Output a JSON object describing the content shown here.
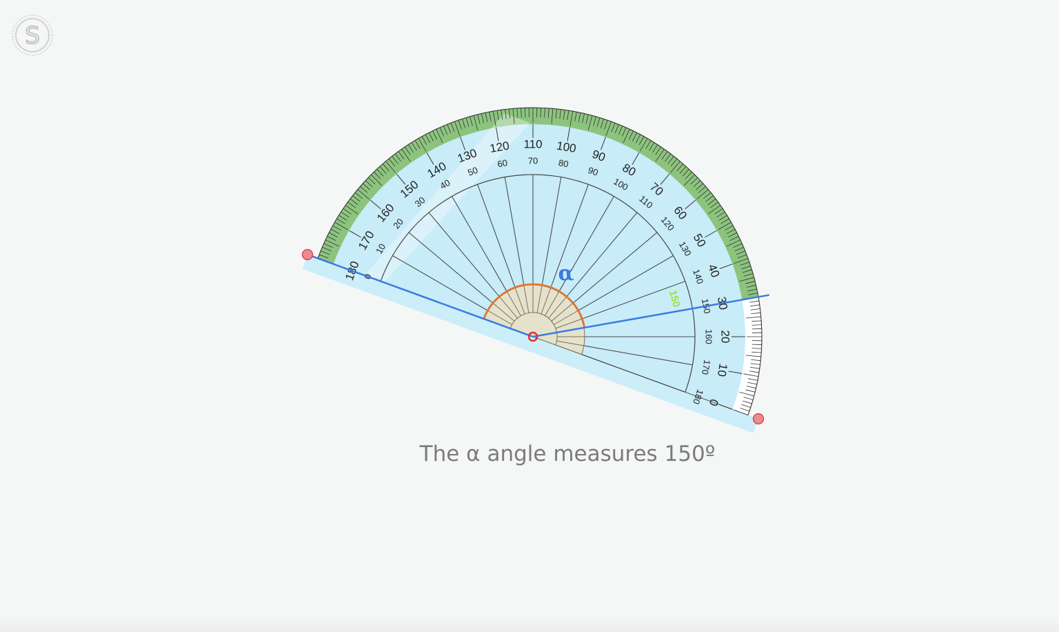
{
  "logo": {
    "letter": "S"
  },
  "protractor": {
    "measured_angle": 150,
    "max_angle": 180,
    "label_step": 10,
    "outer_labels": [
      "0",
      "10",
      "20",
      "30",
      "40",
      "50",
      "60",
      "70",
      "80",
      "90",
      "100",
      "110",
      "120",
      "130",
      "140",
      "150",
      "160",
      "170",
      "180"
    ],
    "inner_labels": [
      "180",
      "170",
      "160",
      "150",
      "140",
      "130",
      "120",
      "110",
      "100",
      "90",
      "80",
      "70",
      "60",
      "50",
      "40",
      "30",
      "20",
      "10",
      "0"
    ],
    "indicator_label": "150",
    "angle_symbol": "α",
    "colors": {
      "body": "#c8ecf8",
      "band_filled": "#8cc47e",
      "ray": "#3a7be0",
      "arc": "#e8742c",
      "handle": "#e88c90",
      "indicator": "#9be33a"
    }
  },
  "caption": "The α angle measures 150º"
}
